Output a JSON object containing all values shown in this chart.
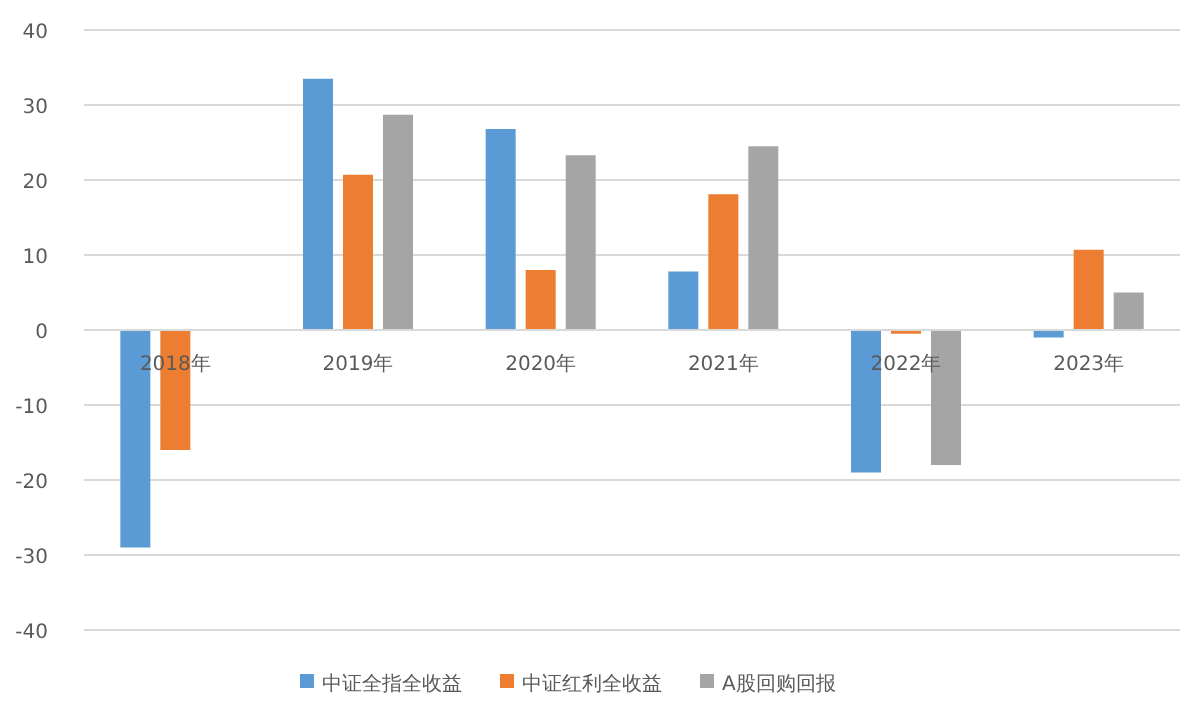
{
  "chart_data": {
    "type": "bar",
    "categories": [
      "2018年",
      "2019年",
      "2020年",
      "2021年",
      "2022年",
      "2023年"
    ],
    "series": [
      {
        "name": "中证全指全收益",
        "color": "#5b9bd5",
        "values": [
          -29,
          33.5,
          26.8,
          7.8,
          -19,
          -1
        ]
      },
      {
        "name": "中证红利全收益",
        "color": "#ed7d31",
        "values": [
          -16,
          20.7,
          8,
          18.1,
          -0.5,
          10.7
        ]
      },
      {
        "name": "A股回购回报",
        "color": "#a5a5a5",
        "values": [
          null,
          28.7,
          23.3,
          24.5,
          -18,
          5
        ]
      }
    ],
    "ylim": [
      -40,
      40
    ],
    "yticks": [
      -40,
      -30,
      -20,
      -10,
      0,
      10,
      20,
      30,
      40
    ],
    "grid": "y",
    "legend": "bottom"
  }
}
